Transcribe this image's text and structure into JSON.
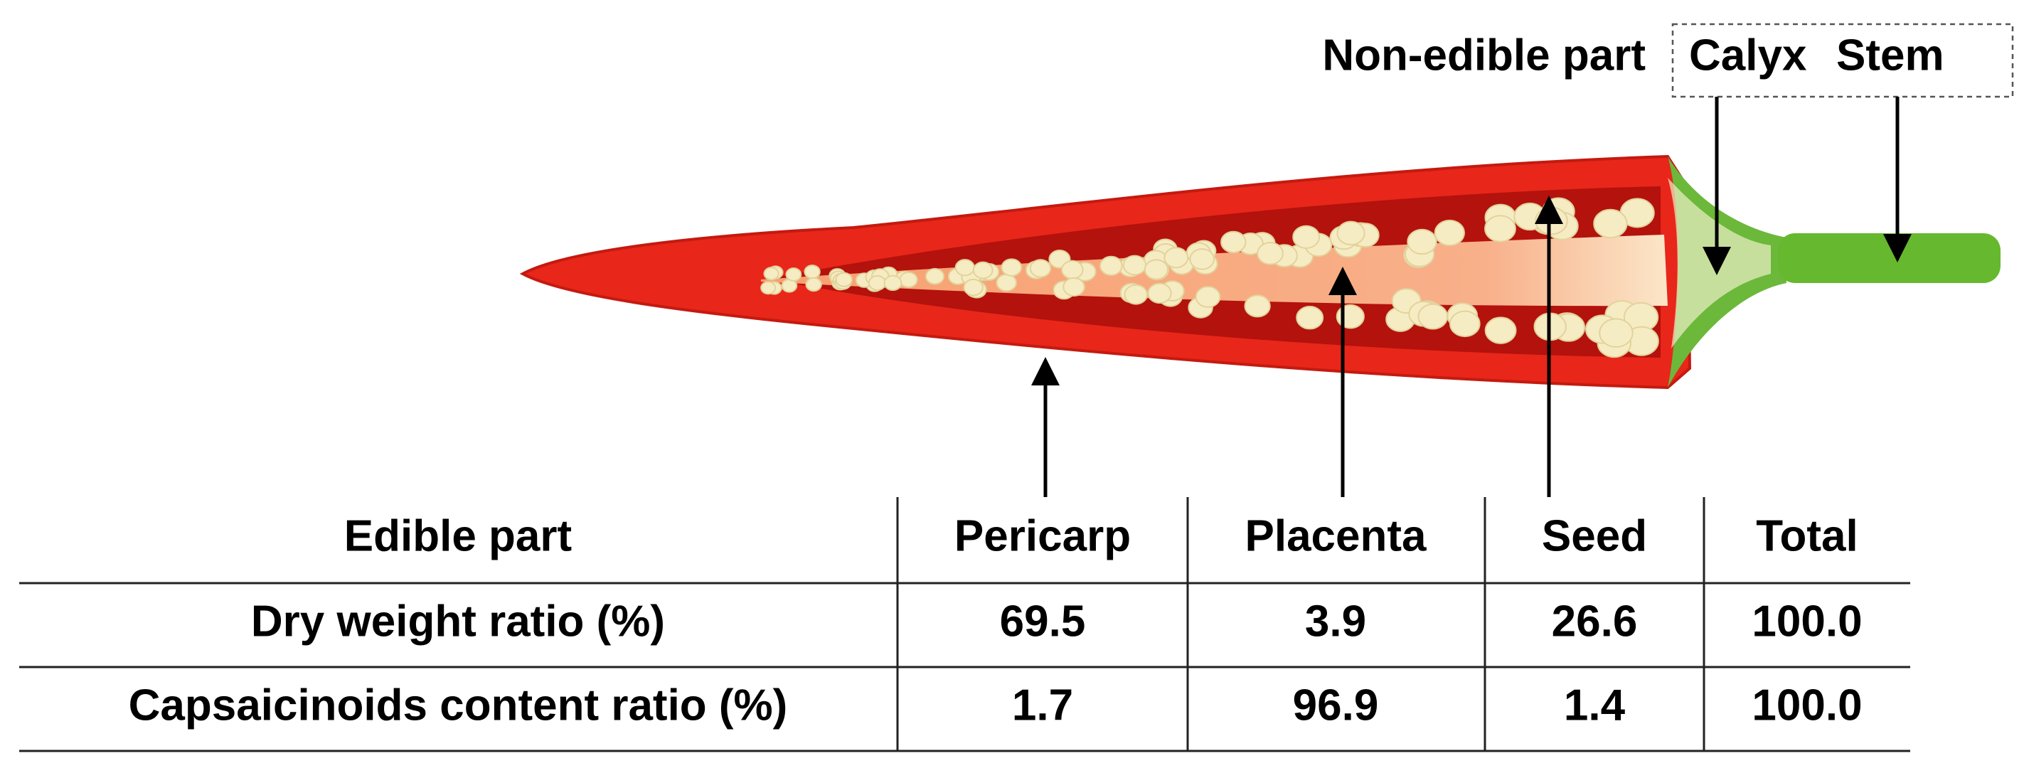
{
  "labels": {
    "non_edible": "Non-edible part",
    "calyx": "Calyx",
    "stem": "Stem"
  },
  "table": {
    "header": [
      "Edible part",
      "Pericarp",
      "Placenta",
      "Seed",
      "Total"
    ],
    "rows": [
      [
        "Dry weight ratio (%)",
        "69.5",
        "3.9",
        "26.6",
        "100.0"
      ],
      [
        "Capsaicinoids content ratio (%)",
        "1.7",
        "96.9",
        "1.4",
        "100.0"
      ]
    ]
  }
}
